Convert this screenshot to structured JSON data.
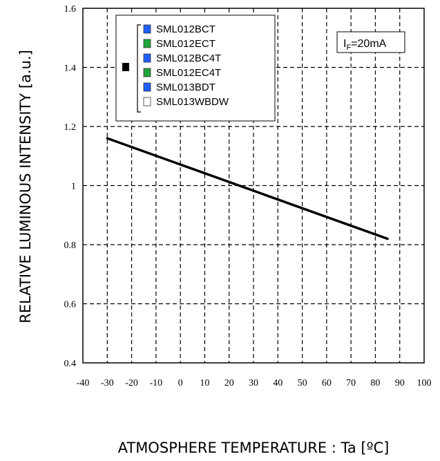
{
  "chart_data": {
    "type": "line",
    "title": "",
    "xlabel": "ATMOSPHERE TEMPERATURE : Ta [ºC]",
    "ylabel": "RELATIVE LUMINOUS INTENSITY [a.u.]",
    "xlim": [
      -40,
      100
    ],
    "ylim": [
      0.4,
      1.6
    ],
    "x_ticks": [
      "-40",
      "-30",
      "-20",
      "-10",
      "0",
      "10",
      "20",
      "30",
      "40",
      "50",
      "60",
      "70",
      "80",
      "90",
      "100"
    ],
    "y_ticks": [
      "0.4",
      "0.6",
      "0.8",
      "1",
      "1.2",
      "1.4",
      "1.6"
    ],
    "grid": true,
    "series": [
      {
        "x": [
          -30,
          85
        ],
        "y": [
          1.16,
          0.82
        ]
      }
    ],
    "legend": {
      "placement": "top-left",
      "items": [
        {
          "label": "SML012BCT",
          "color": "#1f5fff"
        },
        {
          "label": "SML012ECT",
          "color": "#1fa53a"
        },
        {
          "label": "SML012BC4T",
          "color": "#1f5fff"
        },
        {
          "label": "SML012EC4T",
          "color": "#1fa53a"
        },
        {
          "label": "SML013BDT",
          "color": "#1f5fff"
        },
        {
          "label": "SML013WBDW",
          "color": "#ffffff"
        }
      ]
    },
    "annotation": {
      "sym": "I",
      "sub": "F",
      "rest": "=20mA"
    }
  }
}
